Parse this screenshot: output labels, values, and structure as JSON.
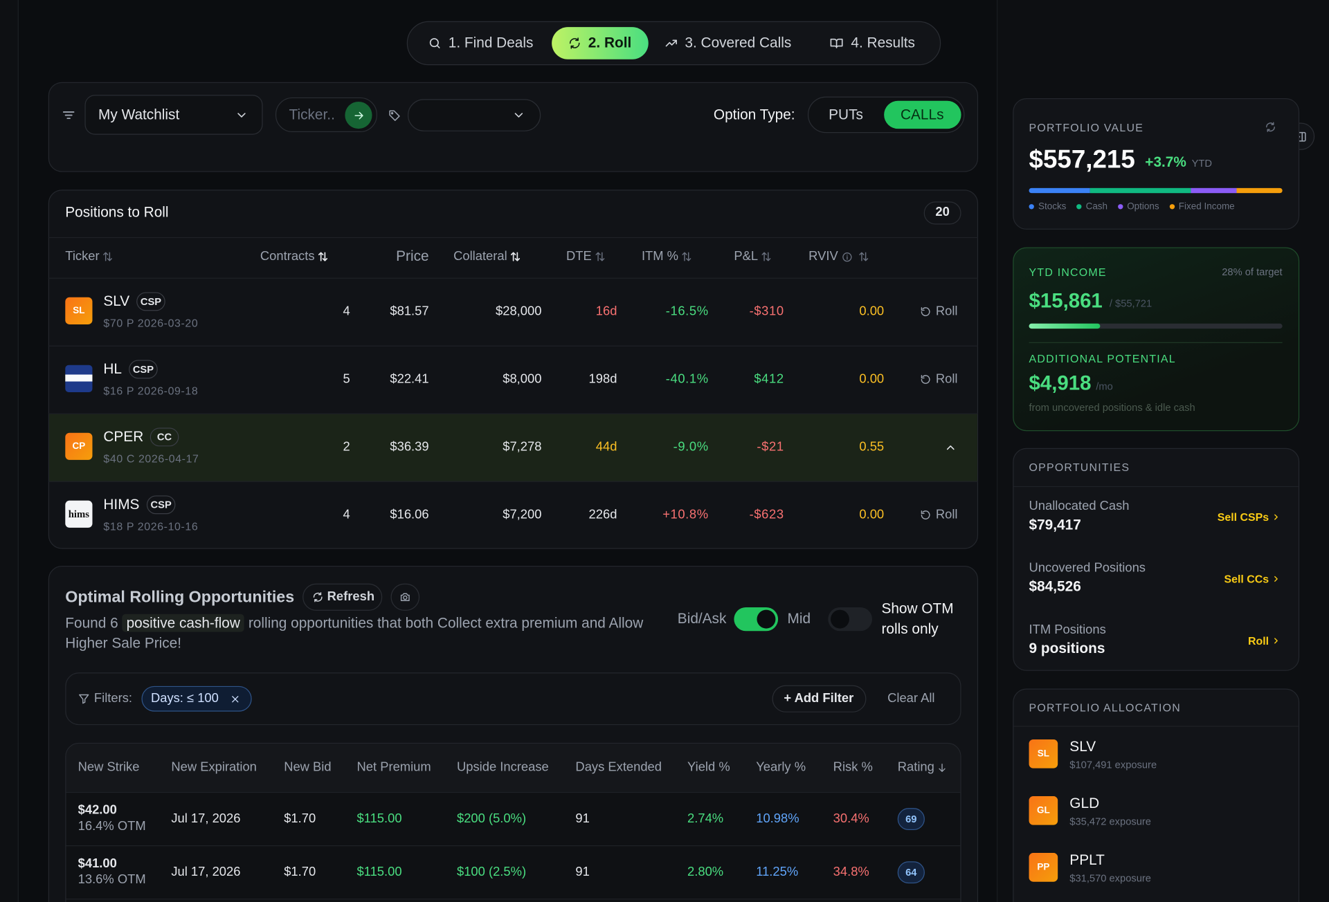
{
  "nav": {
    "steps": [
      "1. Find Deals",
      "2. Roll",
      "3. Covered Calls",
      "4. Results"
    ],
    "active": 1
  },
  "filters": {
    "watchlist": "My Watchlist",
    "ticker_placeholder": "Ticker..",
    "option_type_label": "Option Type:",
    "option_types": [
      "PUTs",
      "CALLs"
    ],
    "active": 1
  },
  "positions": {
    "title": "Positions to Roll",
    "count": 20,
    "columns": [
      "Ticker",
      "Contracts",
      "Price",
      "Collateral",
      "DTE",
      "ITM %",
      "P&L",
      "RVIV"
    ],
    "action": "Roll",
    "expanded": 2,
    "rows": [
      {
        "logo": "SL",
        "ticker": "SLV",
        "kind": "CSP",
        "detail": "$70 P 2026-03-20",
        "contracts": 4,
        "price": "$81.57",
        "collateral": "$28,000",
        "dte": "16d",
        "itm": "-16.5%",
        "pnl": "-$310",
        "rviv": "0.00"
      },
      {
        "ticker": "HL",
        "kind": "CSP",
        "detail": "$16 P 2026-09-18",
        "contracts": 5,
        "price": "$22.41",
        "collateral": "$8,000",
        "dte": "198d",
        "itm": "-40.1%",
        "pnl": "$412",
        "rviv": "0.00"
      },
      {
        "logo": "CP",
        "ticker": "CPER",
        "kind": "CC",
        "detail": "$40 C 2026-04-17",
        "contracts": 2,
        "price": "$36.39",
        "collateral": "$7,278",
        "dte": "44d",
        "itm": "-9.0%",
        "pnl": "-$21",
        "rviv": "0.55"
      },
      {
        "logo": "hims",
        "ticker": "HIMS",
        "kind": "CSP",
        "detail": "$18 P 2026-10-16",
        "contracts": 4,
        "price": "$16.06",
        "collateral": "$7,200",
        "dte": "226d",
        "itm": "+10.8%",
        "pnl": "-$623",
        "rviv": "0.00"
      }
    ]
  },
  "rolling": {
    "title": "Optimal Rolling Opportunities",
    "refresh": "Refresh",
    "summary_lead": "Found 6",
    "summary_highlight": "positive cash-flow",
    "summary_rest": "rolling opportunities that both Collect extra premium and Allow Higher Sale Price!",
    "price_toggle": {
      "left": "Bid/Ask",
      "right": "Mid",
      "on": true
    },
    "otm_toggle": {
      "label": "Show OTM rolls only",
      "on": false
    },
    "filters_label": "Filters:",
    "filter_chips": [
      "Days: ≤ 100"
    ],
    "add_filter": "+ Add Filter",
    "clear_all": "Clear All",
    "columns": [
      "New Strike",
      "New Expiration",
      "New Bid",
      "Net Premium",
      "Upside Increase",
      "Days Extended",
      "Yield %",
      "Yearly %",
      "Risk %",
      "Rating"
    ],
    "rows": [
      {
        "strike": "$42.00",
        "otm": "16.4% OTM",
        "expiration": "Jul 17, 2026",
        "bid": "$1.70",
        "net_premium": "$115.00",
        "upside": "$200 (5.0%)",
        "days_extended": 91,
        "yield": "2.74%",
        "yearly": "10.98%",
        "risk": "30.4%",
        "rating": 69
      },
      {
        "strike": "$41.00",
        "otm": "13.6% OTM",
        "expiration": "Jul 17, 2026",
        "bid": "$1.70",
        "net_premium": "$115.00",
        "upside": "$100 (2.5%)",
        "days_extended": 91,
        "yield": "2.80%",
        "yearly": "11.25%",
        "risk": "34.8%",
        "rating": 64
      }
    ]
  },
  "portfolio": {
    "label": "PORTFOLIO VALUE",
    "value": "$557,215",
    "change": "+3.7%",
    "period": "YTD",
    "mix": [
      {
        "name": "Stocks",
        "color": "#3b82f6",
        "share": 24
      },
      {
        "name": "Cash",
        "color": "#10b981",
        "share": 40
      },
      {
        "name": "Options",
        "color": "#8b5cf6",
        "share": 18
      },
      {
        "name": "Fixed Income",
        "color": "#f59e0b",
        "share": 18
      }
    ]
  },
  "income": {
    "label": "YTD INCOME",
    "target": "28% of target",
    "progress": 28,
    "value": "$15,861",
    "of": "/ $55,721",
    "potential_label": "ADDITIONAL POTENTIAL",
    "potential": "$4,918",
    "unit": "/mo",
    "note": "from uncovered positions & idle cash"
  },
  "opportunities": {
    "label": "OPPORTUNITIES",
    "items": [
      {
        "label": "Unallocated Cash",
        "value": "$79,417",
        "action": "Sell CSPs"
      },
      {
        "label": "Uncovered Positions",
        "value": "$84,526",
        "action": "Sell CCs"
      },
      {
        "label": "ITM Positions",
        "value": "9 positions",
        "action": "Roll"
      }
    ]
  },
  "allocation": {
    "label": "PORTFOLIO ALLOCATION",
    "items": [
      {
        "logo": "SL",
        "ticker": "SLV",
        "exposure": "$107,491 exposure"
      },
      {
        "logo": "GL",
        "ticker": "GLD",
        "exposure": "$35,472 exposure"
      },
      {
        "logo": "PP",
        "ticker": "PPLT",
        "exposure": "$31,570 exposure"
      }
    ]
  }
}
